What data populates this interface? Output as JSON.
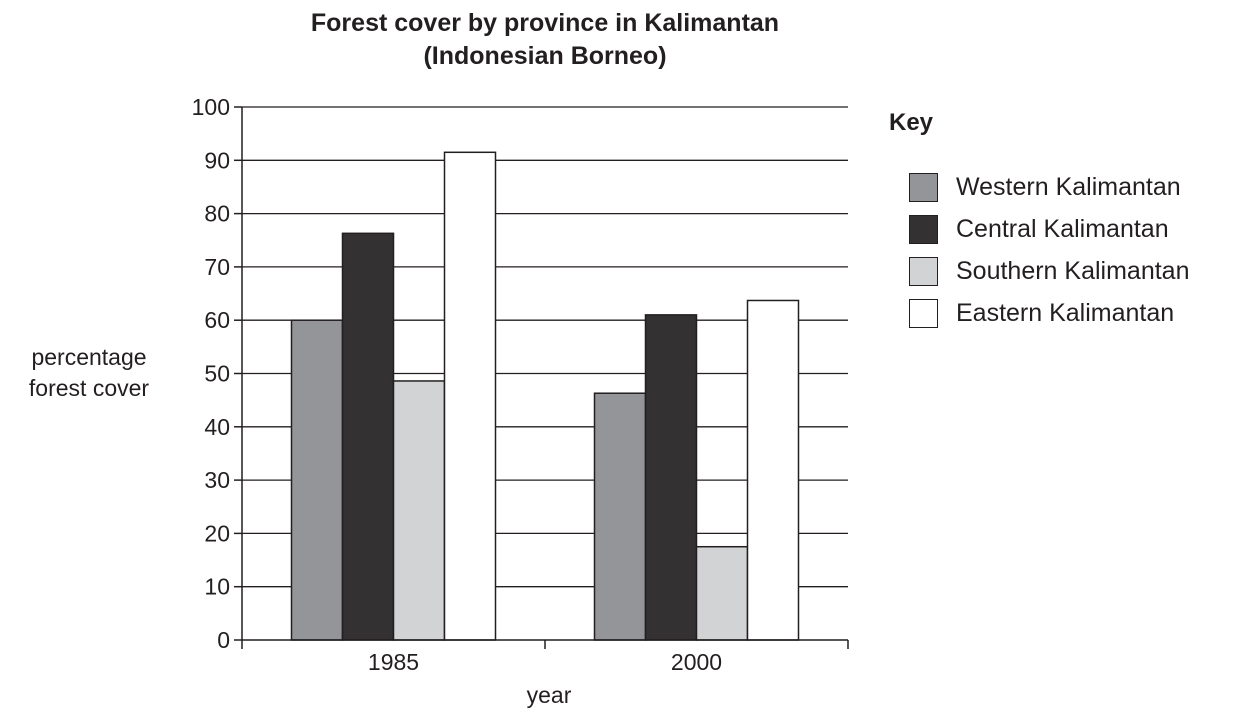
{
  "chart_data": {
    "type": "bar",
    "title_lines": [
      "Forest cover by province in Kalimantan",
      "(Indonesian Borneo)"
    ],
    "xlabel": "year",
    "ylabel_lines": [
      "percentage",
      "forest cover"
    ],
    "categories": [
      "1985",
      "2000"
    ],
    "ylim": [
      0,
      100
    ],
    "yticks": [
      0,
      10,
      20,
      30,
      40,
      50,
      60,
      70,
      80,
      90,
      100
    ],
    "grid": true,
    "legend_title": "Key",
    "legend_placement": "right",
    "series": [
      {
        "name": "Western Kalimantan",
        "color": "#939598",
        "values": [
          60,
          46.3
        ]
      },
      {
        "name": "Central Kalimantan",
        "color": "#333132",
        "values": [
          76.3,
          61
        ]
      },
      {
        "name": "Southern Kalimantan",
        "color": "#d1d3d4",
        "values": [
          48.6,
          17.5
        ]
      },
      {
        "name": "Eastern Kalimantan",
        "color": "#ffffff",
        "values": [
          91.5,
          63.7
        ]
      }
    ]
  }
}
